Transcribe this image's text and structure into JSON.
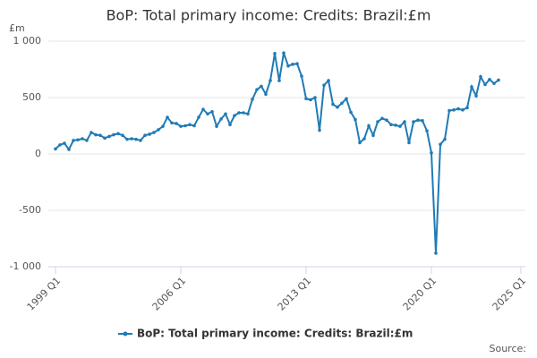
{
  "chart_data": {
    "type": "line",
    "title": "BoP: Total primary income: Credits: Brazil:£m",
    "y_unit": "£m",
    "source": "Source:",
    "categories": [
      "1999 Q1",
      null,
      null,
      null,
      null,
      null,
      null,
      null,
      null,
      null,
      null,
      null,
      null,
      null,
      null,
      null,
      null,
      null,
      null,
      null,
      null,
      null,
      null,
      null,
      null,
      null,
      null,
      null,
      "2006 Q1",
      null,
      null,
      null,
      null,
      null,
      null,
      null,
      null,
      null,
      null,
      null,
      null,
      null,
      null,
      null,
      null,
      null,
      null,
      null,
      null,
      null,
      null,
      null,
      null,
      null,
      null,
      null,
      "2013 Q1",
      null,
      null,
      null,
      null,
      null,
      null,
      null,
      null,
      null,
      null,
      null,
      null,
      null,
      null,
      null,
      null,
      null,
      null,
      null,
      null,
      null,
      null,
      null,
      null,
      null,
      null,
      null,
      "2020 Q1",
      null,
      null,
      null,
      null,
      null,
      null,
      null,
      null,
      null,
      null,
      null,
      null,
      null,
      null,
      null,
      null,
      null,
      null,
      null,
      "2025 Q1"
    ],
    "series": [
      {
        "name": "BoP: Total primary income: Credits: Brazil:£m",
        "color": "#1f7bb6",
        "values": [
          45,
          80,
          95,
          40,
          120,
          125,
          135,
          120,
          190,
          170,
          165,
          140,
          155,
          170,
          180,
          165,
          130,
          135,
          130,
          120,
          165,
          175,
          190,
          215,
          245,
          325,
          275,
          270,
          245,
          250,
          260,
          250,
          325,
          395,
          355,
          375,
          245,
          310,
          355,
          260,
          340,
          365,
          365,
          355,
          485,
          570,
          600,
          530,
          650,
          890,
          650,
          895,
          780,
          795,
          800,
          690,
          490,
          480,
          500,
          210,
          610,
          650,
          440,
          415,
          450,
          490,
          370,
          305,
          100,
          135,
          250,
          165,
          285,
          315,
          300,
          260,
          255,
          245,
          285,
          100,
          285,
          300,
          295,
          205,
          10,
          -880,
          85,
          130,
          385,
          390,
          400,
          390,
          410,
          595,
          515,
          685,
          615,
          660,
          625,
          655,
          null,
          null,
          null,
          null,
          null
        ]
      }
    ],
    "ylim": [
      -1000,
      1000
    ],
    "yticks": [
      {
        "value": 1000,
        "label": "1 000"
      },
      500,
      0,
      -500,
      {
        "value": -1000,
        "label": "-1 000"
      }
    ],
    "grid": true,
    "legend": "bottom"
  }
}
